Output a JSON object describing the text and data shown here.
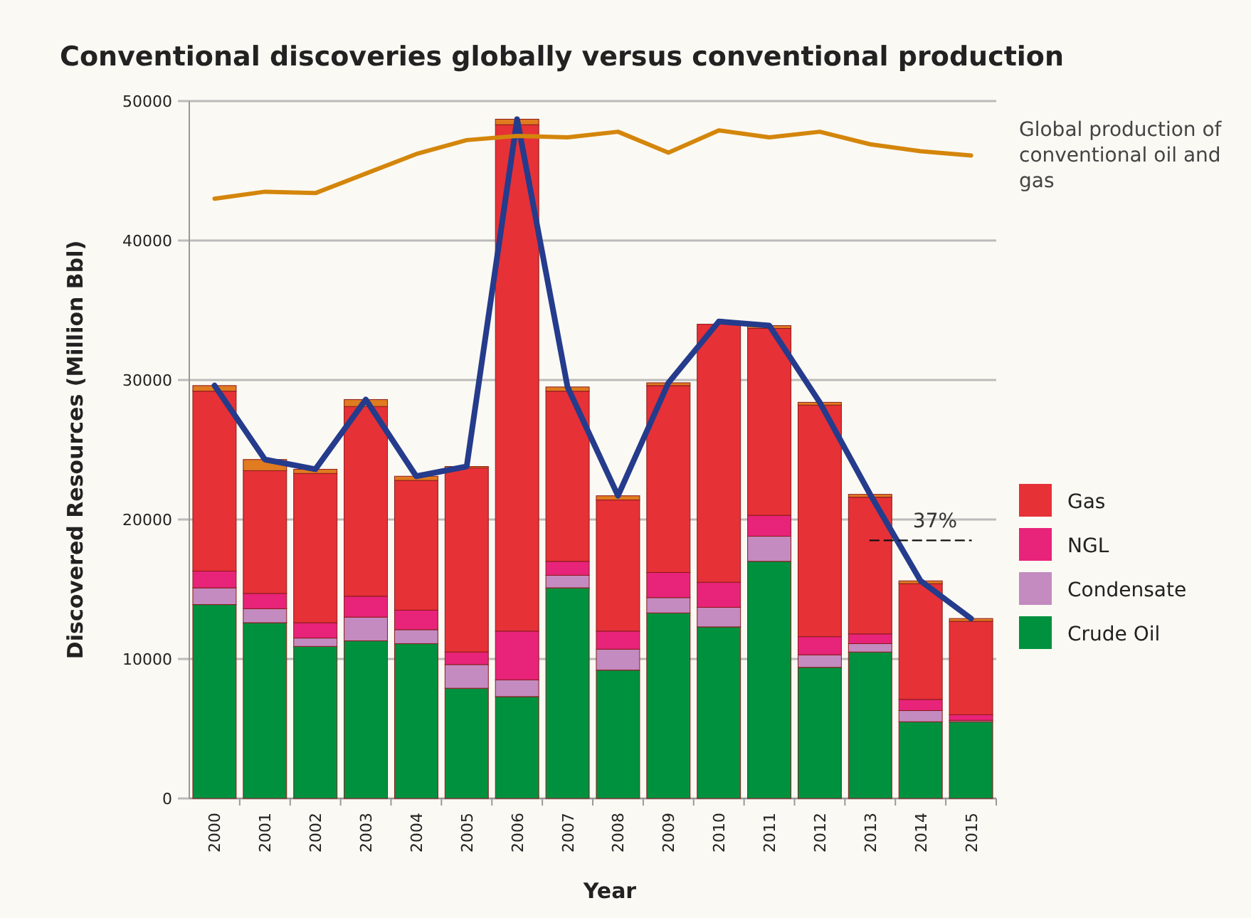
{
  "chart_data": {
    "type": "bar",
    "stacked": true,
    "title": "Conventional discoveries globally versus conventional production",
    "xlabel": "Year",
    "ylabel": "Discovered Resources (Million Bbl)",
    "categories": [
      "2000",
      "2001",
      "2002",
      "2003",
      "2004",
      "2005",
      "2006",
      "2007",
      "2008",
      "2009",
      "2010",
      "2011",
      "2012",
      "2013",
      "2014",
      "2015"
    ],
    "series": [
      {
        "name": "Crude Oil",
        "color": "#00913f",
        "values": [
          13900,
          12600,
          10900,
          11300,
          11100,
          7900,
          7300,
          15100,
          9200,
          13300,
          12300,
          17000,
          9400,
          10500,
          5500,
          5500
        ]
      },
      {
        "name": "Condensate",
        "color": "#c38bc0",
        "values": [
          1200,
          1000,
          600,
          1700,
          1000,
          1700,
          1200,
          900,
          1500,
          1100,
          1400,
          1800,
          900,
          600,
          800,
          100
        ]
      },
      {
        "name": "NGL",
        "color": "#e8237a",
        "values": [
          1200,
          1100,
          1100,
          1500,
          1400,
          900,
          3500,
          1000,
          1300,
          1800,
          1800,
          1500,
          1300,
          700,
          800,
          400
        ]
      },
      {
        "name": "Gas",
        "color": "#e63137",
        "values": [
          12900,
          8800,
          10700,
          13600,
          9300,
          13200,
          36300,
          12200,
          9400,
          13400,
          18500,
          13400,
          16600,
          9800,
          8300,
          6700
        ]
      },
      {
        "color": "#e07b20",
        "values": [
          400,
          800,
          300,
          500,
          300,
          100,
          400,
          300,
          300,
          200,
          null,
          200,
          200,
          200,
          200,
          200
        ]
      },
      {
        "type": "line",
        "color": "#253b8c",
        "values": [
          29600,
          24300,
          23600,
          28600,
          23100,
          23800,
          48700,
          29500,
          21700,
          29800,
          34200,
          33900,
          28400,
          21800,
          15600,
          12900
        ]
      },
      {
        "type": "line",
        "line_style": "dashed",
        "color": "#111111",
        "values": [
          null,
          null,
          null,
          null,
          null,
          null,
          null,
          null,
          null,
          null,
          null,
          null,
          null,
          18500,
          18500,
          18500
        ]
      },
      {
        "type": "line",
        "name": "Global production of conventional oil and gas",
        "color": "#d4860b",
        "values": [
          43000,
          43500,
          43400,
          44800,
          46200,
          47200,
          47500,
          47400,
          47800,
          46300,
          47900,
          47400,
          47800,
          46900,
          46400,
          46100
        ]
      }
    ],
    "ylim": [
      0,
      50000
    ],
    "yticks": [
      0,
      10000,
      20000,
      30000,
      40000,
      50000
    ],
    "grid": "y",
    "legend": "right",
    "marker": "none",
    "annotations": [
      "37%"
    ]
  }
}
